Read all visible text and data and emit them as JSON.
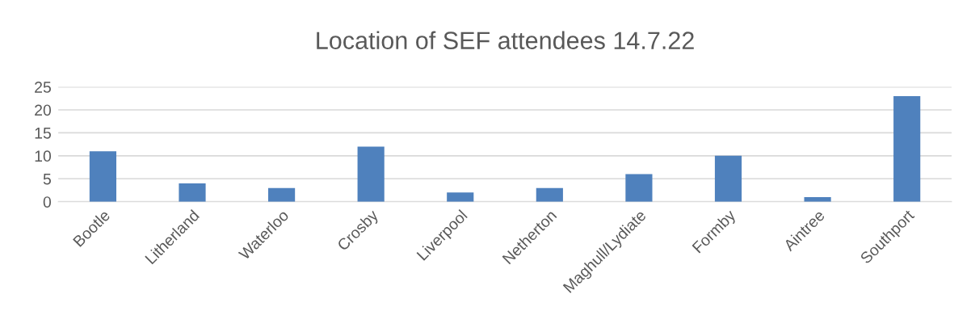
{
  "chart_data": {
    "type": "bar",
    "title": "Location of SEF attendees 14.7.22",
    "categories": [
      "Bootle",
      "Litherland",
      "Waterloo",
      "Crosby",
      "Liverpool",
      "Netherton",
      "Maghull/Lydiate",
      "Formby",
      "Aintree",
      "Southport"
    ],
    "values": [
      11,
      4,
      3,
      12,
      2,
      3,
      6,
      10,
      1,
      23
    ],
    "color": "#4f81bd",
    "ylim": [
      0,
      25
    ],
    "yticks": [
      0,
      5,
      10,
      15,
      20,
      25
    ],
    "grid": "y"
  }
}
